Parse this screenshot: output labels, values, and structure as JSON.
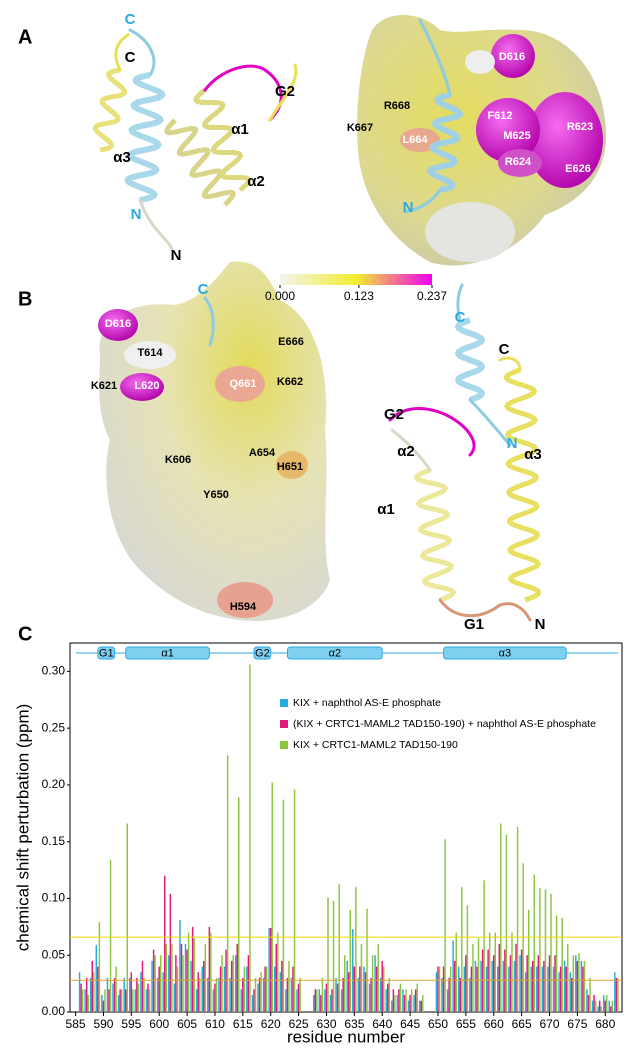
{
  "figure": {
    "panel_labels": [
      "A",
      "B",
      "C"
    ],
    "panel_a": {
      "ribbon_labels": [
        "C",
        "C",
        "G2",
        "α1",
        "α3",
        "α2",
        "N",
        "N"
      ],
      "surface_labels": [
        "D616",
        "R668",
        "K667",
        "L664",
        "F612",
        "M625",
        "R623",
        "R624",
        "E626",
        "N"
      ]
    },
    "colorbar": {
      "lim": [
        0,
        0.237
      ],
      "colors": [
        "#f4f4ee",
        "#f2ee30",
        "#f000f0"
      ],
      "ticks": [
        {
          "value": 0,
          "label": "0.000"
        },
        {
          "value": 0.123,
          "label": "0.123"
        },
        {
          "value": 0.237,
          "label": "0.237"
        }
      ]
    },
    "panel_b": {
      "surface_labels": [
        "C",
        "D616",
        "T614",
        "K621",
        "L620",
        "Q661",
        "E666",
        "K662",
        "A654",
        "K606",
        "H651",
        "Y650",
        "H594"
      ],
      "ribbon_labels": [
        "C",
        "C",
        "G2",
        "N",
        "α2",
        "α3",
        "α1",
        "G1",
        "N"
      ]
    }
  },
  "chart_data": {
    "type": "bar",
    "y_label": "chemical shift perturbation (ppm)",
    "x_label": "residue number",
    "xlim": [
      584,
      683
    ],
    "ylim": [
      0,
      0.325
    ],
    "xticks": [
      585,
      590,
      595,
      600,
      605,
      610,
      615,
      620,
      625,
      630,
      635,
      640,
      645,
      650,
      655,
      660,
      665,
      670,
      675,
      680
    ],
    "yticks": [
      {
        "value": 0,
        "label": "0.00"
      },
      {
        "value": 0.05,
        "label": "0.05"
      },
      {
        "value": 0.1,
        "label": "0.10"
      },
      {
        "value": 0.15,
        "label": "0.15"
      },
      {
        "value": 0.2,
        "label": "0.20"
      },
      {
        "value": 0.25,
        "label": "0.25"
      },
      {
        "value": 0.3,
        "label": "0.30"
      }
    ],
    "thresholds": [
      {
        "value": 0.066,
        "color": "#e6d800"
      },
      {
        "value": 0.028,
        "color": "#e8a030"
      }
    ],
    "secondary_structure": [
      {
        "label": "G1",
        "start": 589,
        "end": 592
      },
      {
        "label": "α1",
        "start": 594,
        "end": 609
      },
      {
        "label": "G2",
        "start": 617,
        "end": 620
      },
      {
        "label": "α2",
        "start": 623,
        "end": 640
      },
      {
        "label": "α3",
        "start": 651,
        "end": 673
      }
    ],
    "x": [
      586,
      587,
      588,
      589,
      590,
      591,
      592,
      593,
      594,
      595,
      596,
      597,
      598,
      599,
      600,
      601,
      602,
      603,
      604,
      605,
      606,
      607,
      608,
      609,
      610,
      611,
      612,
      613,
      614,
      615,
      616,
      617,
      618,
      619,
      620,
      621,
      622,
      623,
      624,
      625,
      626,
      627,
      628,
      629,
      630,
      631,
      632,
      633,
      634,
      635,
      636,
      637,
      638,
      639,
      640,
      641,
      642,
      643,
      644,
      645,
      646,
      647,
      648,
      649,
      650,
      651,
      652,
      653,
      654,
      655,
      656,
      657,
      658,
      659,
      660,
      661,
      662,
      663,
      664,
      665,
      666,
      667,
      668,
      669,
      670,
      671,
      672,
      673,
      674,
      675,
      676,
      677,
      678,
      679,
      680,
      681,
      682
    ],
    "series": [
      {
        "name": "KIX + naphthol AS-E phosphate",
        "color": "#29abe2",
        "values": [
          0.035,
          0.02,
          0.03,
          0.059,
          0.015,
          0.03,
          0.025,
          0.015,
          0.03,
          0.03,
          0.02,
          0.035,
          0.02,
          0.045,
          0.03,
          0.035,
          0.05,
          0.025,
          0.081,
          0.06,
          0.045,
          0.02,
          0.04,
          0.03,
          0.02,
          0.03,
          0.04,
          0.03,
          0.05,
          0.02,
          0.04,
          0.015,
          0.025,
          0.03,
          0.074,
          0.04,
          0.035,
          0.02,
          0.03,
          0.02,
          null,
          null,
          0.015,
          0.02,
          0.02,
          0.015,
          0.03,
          0.02,
          0.045,
          0.073,
          0.03,
          0.04,
          0.025,
          0.05,
          0.03,
          0.02,
          0.01,
          0.015,
          0.02,
          0.01,
          0.015,
          0.01,
          null,
          null,
          0.035,
          0.03,
          0.02,
          0.063,
          0.04,
          0.04,
          0.03,
          0.045,
          0.045,
          0.04,
          0.045,
          0.04,
          0.045,
          0.04,
          0.045,
          0.05,
          0.035,
          0.04,
          0.04,
          0.04,
          0.04,
          0.04,
          0.035,
          0.045,
          0.035,
          0.05,
          0.045,
          0.02,
          0.01,
          0.005,
          0.015,
          0.01,
          0.035
        ]
      },
      {
        "name": "(KIX + CRTC1-MAML2 TAD150-190) + naphthol AS-E phosphate",
        "color": "#e0197a",
        "values": [
          0.025,
          0.03,
          0.045,
          0.04,
          0.01,
          0.02,
          0.03,
          0.02,
          0.02,
          0.035,
          0.03,
          0.045,
          0.025,
          0.055,
          0.04,
          0.12,
          0.104,
          0.05,
          0.06,
          0.055,
          0.075,
          0.035,
          0.045,
          0.075,
          0.025,
          0.04,
          0.055,
          0.045,
          0.06,
          0.03,
          0.05,
          0.02,
          0.03,
          0.04,
          0.074,
          0.06,
          0.045,
          0.03,
          0.04,
          0.025,
          null,
          null,
          0.02,
          0.015,
          0.025,
          0.02,
          0.025,
          0.03,
          0.035,
          0.04,
          0.04,
          0.035,
          0.03,
          0.04,
          0.045,
          0.025,
          0.02,
          0.02,
          0.015,
          0.015,
          0.02,
          0.01,
          null,
          null,
          0.04,
          0.04,
          0.03,
          0.045,
          0.03,
          0.05,
          0.04,
          0.04,
          0.055,
          0.055,
          0.05,
          0.06,
          0.055,
          0.05,
          0.06,
          0.055,
          0.05,
          0.045,
          0.05,
          0.045,
          0.05,
          0.05,
          0.04,
          0.04,
          0.03,
          0.045,
          0.04,
          0.015,
          0.015,
          0.01,
          0.01,
          0.005,
          0.03
        ]
      },
      {
        "name": "KIX + CRTC1-MAML2 TAD150-190",
        "color": "#8cc63f",
        "values": [
          0.02,
          0.015,
          0.035,
          0.079,
          0.02,
          0.134,
          0.04,
          0.02,
          0.166,
          0.02,
          0.025,
          0.03,
          0.02,
          0.05,
          0.05,
          0.06,
          0.06,
          0.04,
          0.05,
          0.07,
          0.065,
          0.03,
          0.06,
          0.07,
          0.03,
          0.05,
          0.226,
          0.05,
          0.189,
          0.04,
          0.306,
          0.03,
          0.035,
          0.04,
          0.202,
          0.07,
          0.187,
          0.045,
          0.196,
          0.03,
          null,
          null,
          0.02,
          0.03,
          0.101,
          0.098,
          0.113,
          0.05,
          0.09,
          0.11,
          0.06,
          0.091,
          0.05,
          0.06,
          0.04,
          0.03,
          0.015,
          0.025,
          0.02,
          0.02,
          0.025,
          0.015,
          null,
          null,
          0.04,
          0.152,
          0.04,
          0.07,
          0.11,
          0.094,
          0.06,
          0.065,
          0.116,
          0.07,
          0.07,
          0.166,
          0.156,
          0.07,
          0.163,
          0.131,
          0.09,
          0.121,
          0.109,
          0.108,
          0.104,
          0.085,
          0.083,
          0.06,
          0.05,
          0.052,
          0.045,
          0.03,
          0.01,
          0.005,
          0.015,
          0.01,
          0.03
        ]
      }
    ]
  }
}
